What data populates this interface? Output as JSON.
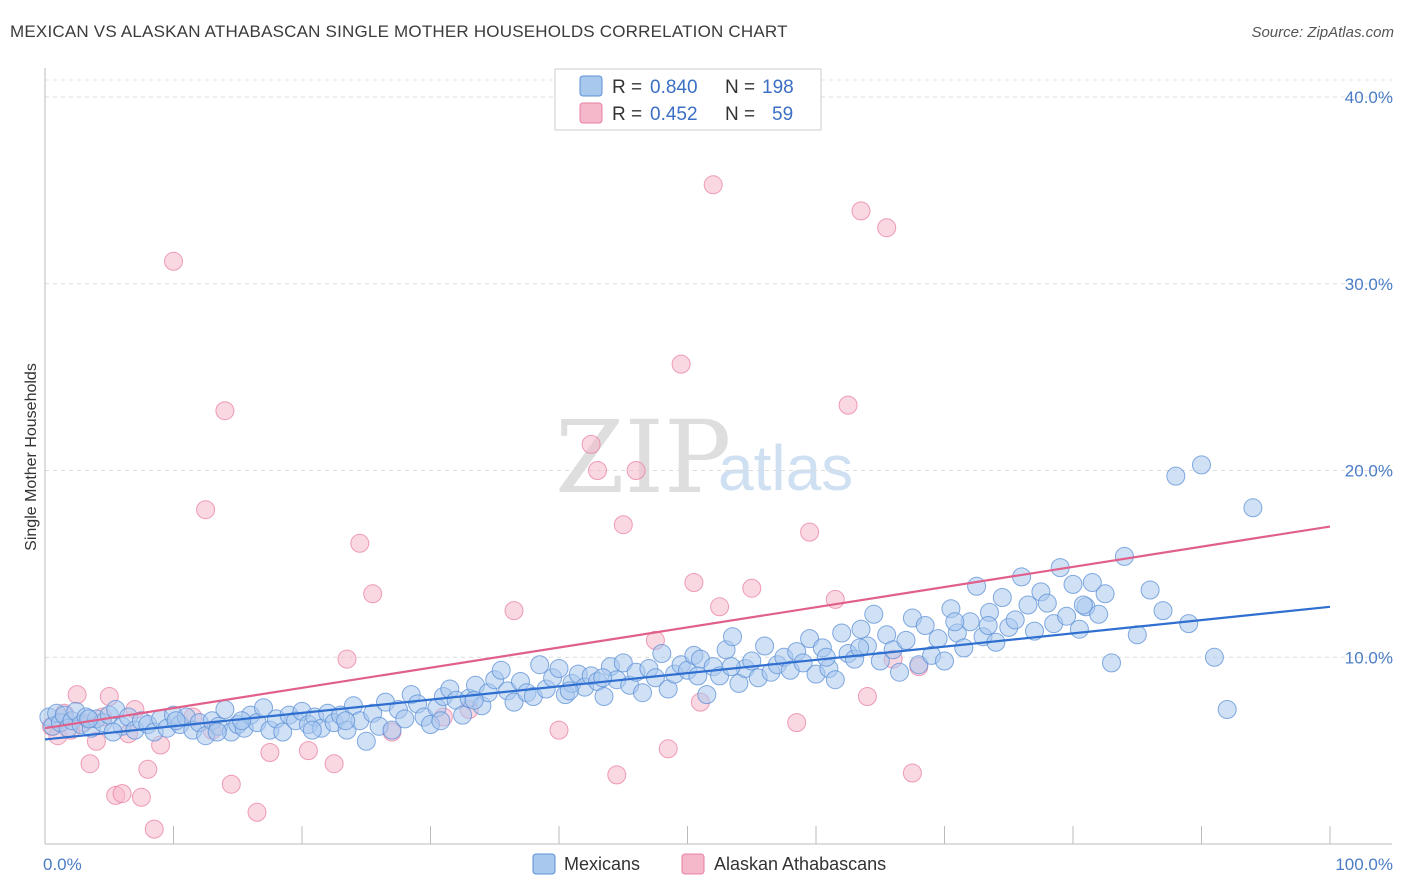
{
  "header": {
    "title": "MEXICAN VS ALASKAN ATHABASCAN SINGLE MOTHER HOUSEHOLDS CORRELATION CHART",
    "source": "Source: ZipAtlas.com"
  },
  "watermark": {
    "zip": "ZIP",
    "atlas": "atlas"
  },
  "legend": {
    "rows": [
      {
        "r_label": "R =",
        "r_value": "0.840",
        "n_label": "N =",
        "n_value": "198",
        "color": "#a9c8ee"
      },
      {
        "r_label": "R =",
        "r_value": "0.452",
        "n_label": "N =",
        "n_value": "59",
        "color": "#f5b8cb"
      }
    ]
  },
  "bottom_legend": [
    {
      "label": "Mexicans",
      "color": "#a9c8ee"
    },
    {
      "label": "Alaskan Athabascans",
      "color": "#f5b8cb"
    }
  ],
  "chart_data": {
    "type": "scatter",
    "title": "MEXICAN VS ALASKAN ATHABASCAN SINGLE MOTHER HOUSEHOLDS CORRELATION CHART",
    "xlabel": "",
    "ylabel": "Single Mother Households",
    "xlim": [
      0,
      100
    ],
    "ylim": [
      0,
      40
    ],
    "x_tick_labels": [
      "0.0%",
      "100.0%"
    ],
    "y_ticks": [
      10,
      20,
      30,
      40
    ],
    "y_tick_labels": [
      "10.0%",
      "20.0%",
      "30.0%",
      "40.0%"
    ],
    "grid": true,
    "legend_position": "top-center",
    "colors": {
      "mexicans": "#5b8fd6",
      "mexicans_fill": "#a9c8ee",
      "mexicans_line": "#2f6fd0",
      "athabascans": "#e87fa1",
      "athabascans_fill": "#f5b8cb",
      "athabascans_line": "#e0608b"
    },
    "series": [
      {
        "name": "Mexicans",
        "trend": {
          "x": [
            0,
            100
          ],
          "y": [
            5.6,
            12.7
          ]
        },
        "points": [
          [
            0.3,
            6.8
          ],
          [
            0.6,
            6.3
          ],
          [
            0.9,
            7.0
          ],
          [
            1.2,
            6.5
          ],
          [
            1.5,
            6.9
          ],
          [
            1.8,
            6.2
          ],
          [
            2.1,
            6.6
          ],
          [
            2.4,
            7.1
          ],
          [
            2.8,
            6.4
          ],
          [
            3.2,
            6.8
          ],
          [
            3.6,
            6.2
          ],
          [
            4.0,
            6.7
          ],
          [
            4.5,
            6.5
          ],
          [
            5.0,
            6.9
          ],
          [
            5.5,
            7.2
          ],
          [
            6.0,
            6.3
          ],
          [
            6.5,
            6.8
          ],
          [
            7.0,
            6.1
          ],
          [
            7.5,
            6.6
          ],
          [
            8.0,
            6.4
          ],
          [
            8.5,
            6.0
          ],
          [
            9.0,
            6.7
          ],
          [
            9.5,
            6.2
          ],
          [
            10.0,
            6.9
          ],
          [
            10.5,
            6.4
          ],
          [
            11.0,
            6.8
          ],
          [
            11.5,
            6.1
          ],
          [
            12.0,
            6.5
          ],
          [
            12.5,
            5.8
          ],
          [
            13.0,
            6.6
          ],
          [
            13.5,
            6.3
          ],
          [
            14.0,
            7.2
          ],
          [
            14.5,
            6.0
          ],
          [
            15.0,
            6.4
          ],
          [
            15.5,
            6.2
          ],
          [
            16.0,
            6.9
          ],
          [
            16.5,
            6.5
          ],
          [
            17.0,
            7.3
          ],
          [
            17.5,
            6.1
          ],
          [
            18.0,
            6.7
          ],
          [
            18.5,
            6.0
          ],
          [
            19.0,
            6.9
          ],
          [
            19.5,
            6.6
          ],
          [
            20.0,
            7.1
          ],
          [
            20.5,
            6.4
          ],
          [
            21.0,
            6.8
          ],
          [
            21.5,
            6.2
          ],
          [
            22.0,
            7.0
          ],
          [
            22.5,
            6.5
          ],
          [
            23.0,
            6.9
          ],
          [
            23.5,
            6.1
          ],
          [
            24.0,
            7.4
          ],
          [
            24.5,
            6.6
          ],
          [
            25.0,
            5.5
          ],
          [
            25.5,
            7.0
          ],
          [
            26.0,
            6.3
          ],
          [
            26.5,
            7.6
          ],
          [
            27.0,
            6.1
          ],
          [
            27.5,
            7.2
          ],
          [
            28.0,
            6.7
          ],
          [
            28.5,
            8.0
          ],
          [
            29.0,
            7.5
          ],
          [
            29.5,
            6.8
          ],
          [
            30.0,
            6.4
          ],
          [
            30.5,
            7.3
          ],
          [
            31.0,
            7.9
          ],
          [
            31.5,
            8.3
          ],
          [
            32.0,
            7.7
          ],
          [
            32.5,
            6.9
          ],
          [
            33.0,
            7.8
          ],
          [
            33.5,
            8.5
          ],
          [
            34.0,
            7.4
          ],
          [
            34.5,
            8.1
          ],
          [
            35.0,
            8.8
          ],
          [
            35.5,
            9.3
          ],
          [
            36.0,
            8.2
          ],
          [
            36.5,
            7.6
          ],
          [
            37.0,
            8.7
          ],
          [
            37.5,
            8.1
          ],
          [
            38.0,
            7.9
          ],
          [
            38.5,
            9.6
          ],
          [
            39.0,
            8.3
          ],
          [
            39.5,
            8.9
          ],
          [
            40.0,
            9.4
          ],
          [
            40.5,
            8.0
          ],
          [
            41.0,
            8.6
          ],
          [
            41.5,
            9.1
          ],
          [
            42.0,
            8.4
          ],
          [
            42.5,
            9.0
          ],
          [
            43.0,
            8.7
          ],
          [
            43.5,
            7.9
          ],
          [
            44.0,
            9.5
          ],
          [
            44.5,
            8.8
          ],
          [
            45.0,
            9.7
          ],
          [
            45.5,
            8.5
          ],
          [
            46.0,
            9.2
          ],
          [
            46.5,
            8.1
          ],
          [
            47.0,
            9.4
          ],
          [
            47.5,
            8.9
          ],
          [
            48.0,
            10.2
          ],
          [
            48.5,
            8.3
          ],
          [
            49.0,
            9.1
          ],
          [
            49.5,
            9.6
          ],
          [
            50.0,
            9.3
          ],
          [
            50.5,
            10.1
          ],
          [
            51.0,
            9.9
          ],
          [
            51.5,
            8.0
          ],
          [
            52.0,
            9.5
          ],
          [
            52.5,
            9.0
          ],
          [
            53.0,
            10.4
          ],
          [
            53.5,
            11.1
          ],
          [
            54.0,
            8.6
          ],
          [
            54.5,
            9.4
          ],
          [
            55.0,
            9.8
          ],
          [
            55.5,
            8.9
          ],
          [
            56.0,
            10.6
          ],
          [
            56.5,
            9.2
          ],
          [
            57.0,
            9.6
          ],
          [
            57.5,
            10.0
          ],
          [
            58.0,
            9.3
          ],
          [
            58.5,
            10.3
          ],
          [
            59.0,
            9.7
          ],
          [
            59.5,
            11.0
          ],
          [
            60.0,
            9.1
          ],
          [
            60.5,
            10.5
          ],
          [
            61.0,
            9.4
          ],
          [
            61.5,
            8.8
          ],
          [
            62.0,
            11.3
          ],
          [
            62.5,
            10.2
          ],
          [
            63.0,
            9.9
          ],
          [
            63.5,
            11.5
          ],
          [
            64.0,
            10.6
          ],
          [
            64.5,
            12.3
          ],
          [
            65.0,
            9.8
          ],
          [
            65.5,
            11.2
          ],
          [
            66.0,
            10.4
          ],
          [
            66.5,
            9.2
          ],
          [
            67.0,
            10.9
          ],
          [
            67.5,
            12.1
          ],
          [
            68.0,
            9.6
          ],
          [
            68.5,
            11.7
          ],
          [
            69.0,
            10.1
          ],
          [
            69.5,
            11.0
          ],
          [
            70.0,
            9.8
          ],
          [
            70.5,
            12.6
          ],
          [
            71.0,
            11.3
          ],
          [
            71.5,
            10.5
          ],
          [
            72.0,
            11.9
          ],
          [
            72.5,
            13.8
          ],
          [
            73.0,
            11.1
          ],
          [
            73.5,
            12.4
          ],
          [
            74.0,
            10.8
          ],
          [
            74.5,
            13.2
          ],
          [
            75.0,
            11.6
          ],
          [
            75.5,
            12.0
          ],
          [
            76.0,
            14.3
          ],
          [
            76.5,
            12.8
          ],
          [
            77.0,
            11.4
          ],
          [
            77.5,
            13.5
          ],
          [
            78.0,
            12.9
          ],
          [
            78.5,
            11.8
          ],
          [
            79.0,
            14.8
          ],
          [
            79.5,
            12.2
          ],
          [
            80.0,
            13.9
          ],
          [
            80.5,
            11.5
          ],
          [
            81.0,
            12.7
          ],
          [
            81.5,
            14.0
          ],
          [
            82.0,
            12.3
          ],
          [
            82.5,
            13.4
          ],
          [
            83.0,
            9.7
          ],
          [
            84.0,
            15.4
          ],
          [
            85.0,
            11.2
          ],
          [
            86.0,
            13.6
          ],
          [
            87.0,
            12.5
          ],
          [
            88.0,
            19.7
          ],
          [
            89.0,
            11.8
          ],
          [
            90.0,
            20.3
          ],
          [
            91.0,
            10.0
          ],
          [
            92.0,
            7.2
          ],
          [
            94.0,
            18.0
          ],
          [
            10.2,
            6.6
          ],
          [
            20.8,
            6.1
          ],
          [
            30.8,
            6.6
          ],
          [
            40.8,
            8.2
          ],
          [
            50.8,
            9.0
          ],
          [
            60.8,
            10.0
          ],
          [
            70.8,
            11.9
          ],
          [
            80.8,
            12.8
          ],
          [
            3.4,
            6.7
          ],
          [
            13.4,
            6.0
          ],
          [
            23.4,
            6.6
          ],
          [
            33.4,
            7.7
          ],
          [
            43.4,
            8.9
          ],
          [
            53.4,
            9.5
          ],
          [
            63.4,
            10.5
          ],
          [
            73.4,
            11.7
          ],
          [
            5.3,
            6.0
          ],
          [
            15.3,
            6.6
          ]
        ]
      },
      {
        "name": "Alaskan Athabascans",
        "trend": {
          "x": [
            0,
            100
          ],
          "y": [
            6.2,
            17.0
          ]
        },
        "points": [
          [
            0.5,
            6.3
          ],
          [
            1.0,
            5.8
          ],
          [
            1.5,
            7.0
          ],
          [
            2.0,
            6.1
          ],
          [
            2.5,
            8.0
          ],
          [
            3.0,
            6.5
          ],
          [
            3.5,
            4.3
          ],
          [
            4.0,
            5.5
          ],
          [
            4.5,
            6.8
          ],
          [
            5.0,
            7.9
          ],
          [
            5.5,
            2.6
          ],
          [
            6.0,
            2.7
          ],
          [
            6.5,
            5.9
          ],
          [
            7.0,
            7.2
          ],
          [
            7.5,
            2.5
          ],
          [
            8.0,
            4.0
          ],
          [
            8.5,
            0.8
          ],
          [
            9.0,
            5.3
          ],
          [
            10.0,
            31.2
          ],
          [
            11.5,
            6.8
          ],
          [
            12.5,
            17.9
          ],
          [
            13.0,
            6.1
          ],
          [
            14.0,
            23.2
          ],
          [
            14.5,
            3.2
          ],
          [
            16.5,
            1.7
          ],
          [
            17.5,
            4.9
          ],
          [
            20.5,
            5.0
          ],
          [
            22.5,
            4.3
          ],
          [
            23.5,
            9.9
          ],
          [
            24.5,
            16.1
          ],
          [
            25.5,
            13.4
          ],
          [
            27.0,
            6.0
          ],
          [
            31.0,
            6.8
          ],
          [
            33.0,
            7.2
          ],
          [
            36.5,
            12.5
          ],
          [
            40.0,
            6.1
          ],
          [
            42.5,
            21.4
          ],
          [
            43.0,
            20.0
          ],
          [
            44.5,
            3.7
          ],
          [
            45.0,
            17.1
          ],
          [
            46.0,
            20.0
          ],
          [
            47.5,
            10.9
          ],
          [
            48.5,
            5.1
          ],
          [
            49.5,
            25.7
          ],
          [
            50.5,
            14.0
          ],
          [
            51.0,
            7.6
          ],
          [
            52.0,
            35.3
          ],
          [
            52.5,
            12.7
          ],
          [
            55.0,
            13.7
          ],
          [
            58.5,
            6.5
          ],
          [
            59.5,
            16.7
          ],
          [
            61.5,
            13.1
          ],
          [
            62.5,
            23.5
          ],
          [
            63.5,
            33.9
          ],
          [
            64.0,
            7.9
          ],
          [
            65.5,
            33.0
          ],
          [
            66.0,
            9.9
          ],
          [
            67.5,
            3.8
          ],
          [
            68.0,
            9.5
          ]
        ]
      }
    ]
  }
}
